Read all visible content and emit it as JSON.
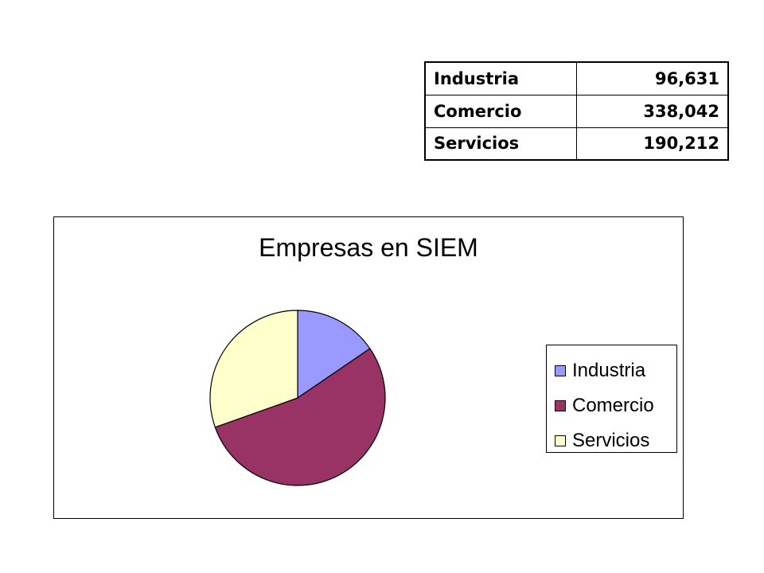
{
  "table": {
    "rows": [
      {
        "category": "Industria",
        "value": "96,631"
      },
      {
        "category": "Comercio",
        "value": "338,042"
      },
      {
        "category": "Servicios",
        "value": "190,212"
      }
    ]
  },
  "chart_data": {
    "type": "pie",
    "title": "Empresas en SIEM",
    "categories": [
      "Industria",
      "Comercio",
      "Servicios"
    ],
    "values": [
      96631,
      338042,
      190212
    ],
    "colors": [
      "#9999ff",
      "#993366",
      "#ffffcc"
    ],
    "legend_position": "right",
    "start_angle_deg": 0,
    "direction": "clockwise"
  }
}
